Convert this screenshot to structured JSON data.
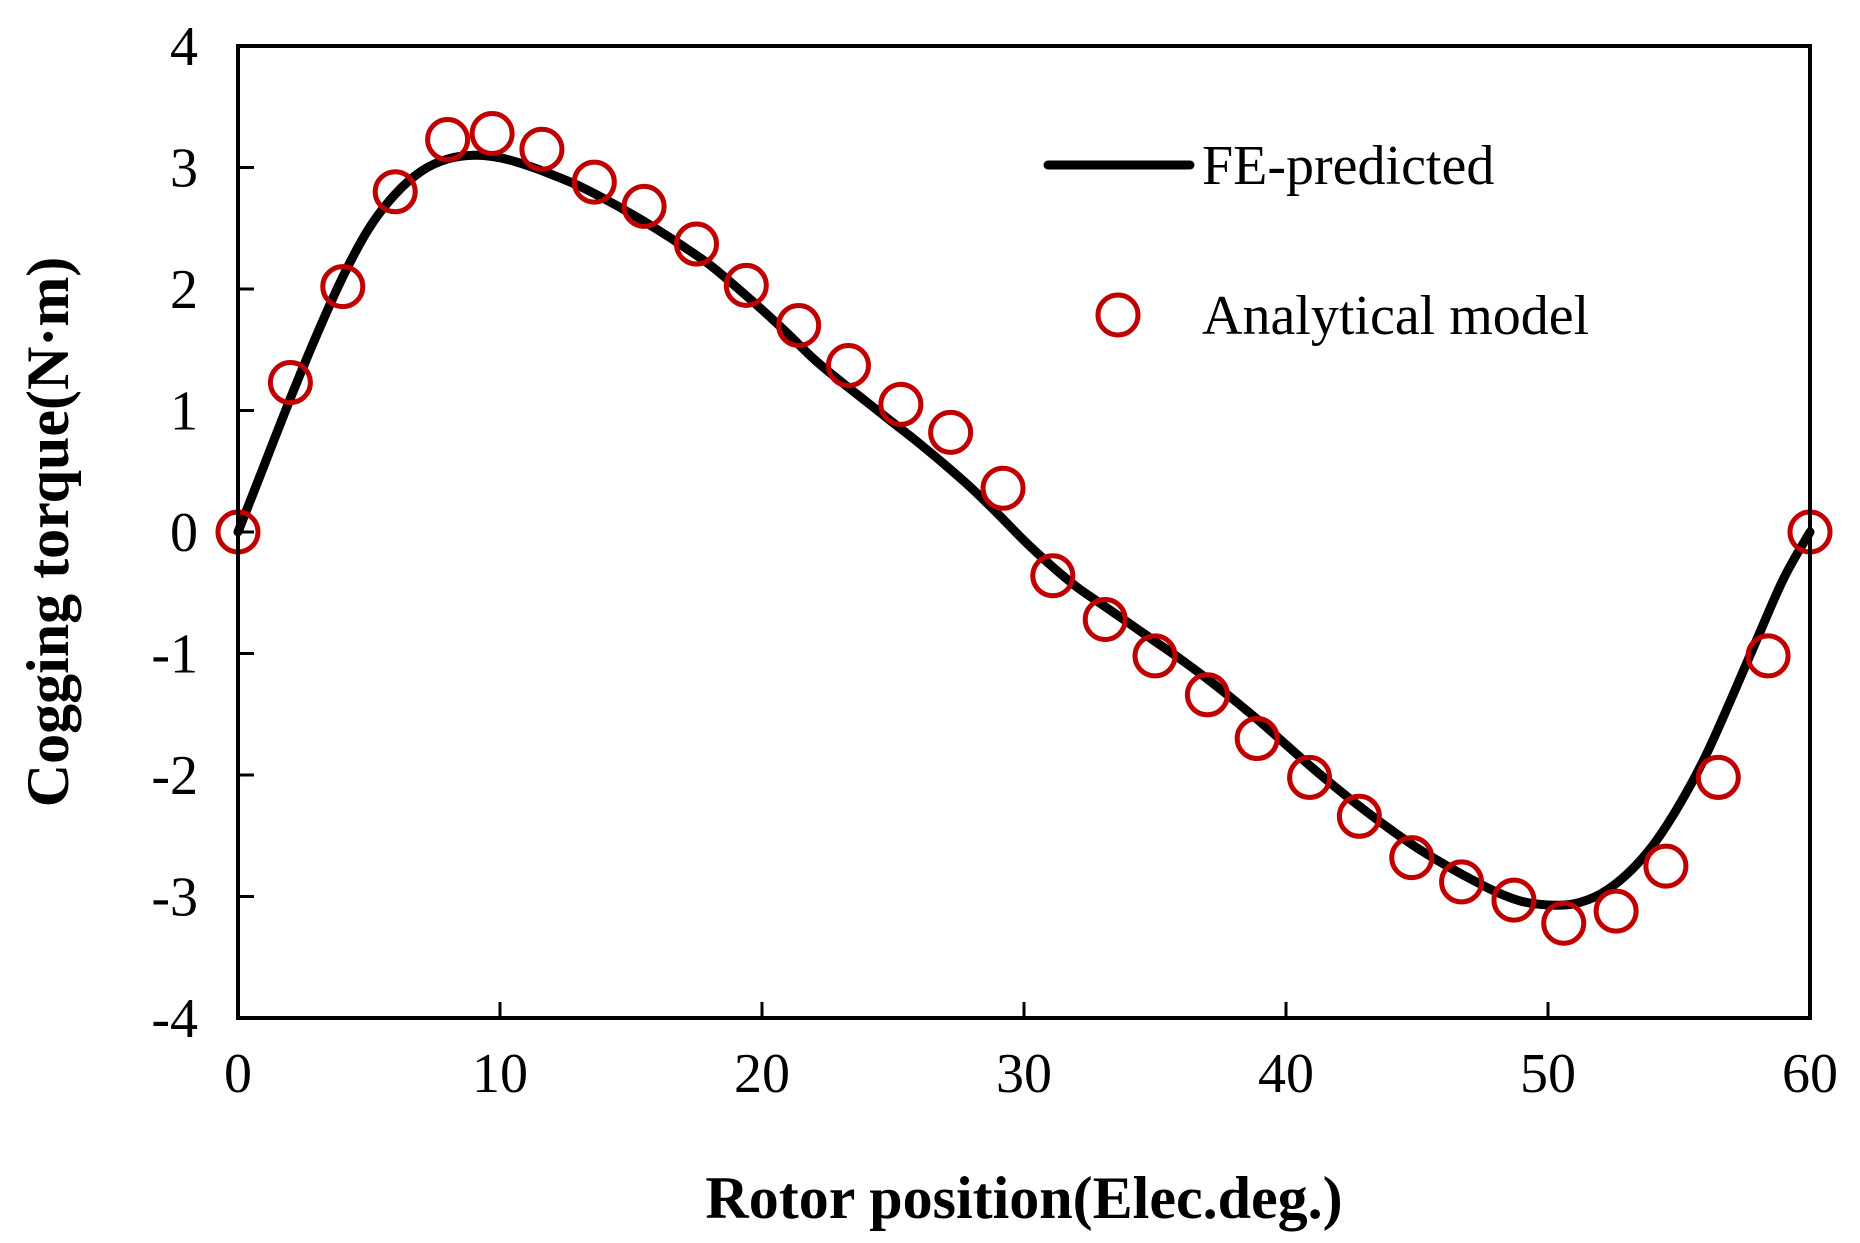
{
  "chart_data": {
    "type": "line",
    "title": "",
    "xlabel": "Rotor position(Elec.deg.)",
    "ylabel": "Cogging torque(N·m)",
    "xlim": [
      0,
      60
    ],
    "ylim": [
      -4,
      4
    ],
    "xticks": [
      0,
      10,
      20,
      30,
      40,
      50,
      60
    ],
    "yticks": [
      4,
      3,
      2,
      1,
      0,
      -1,
      -2,
      -3,
      -4
    ],
    "grid": false,
    "legend_position": "top-right",
    "colors": {
      "fe_line": "#000000",
      "analytical_marker": "#c00000"
    },
    "series": [
      {
        "name": "FE-predicted",
        "style": "line",
        "x": [
          0,
          1,
          2,
          3,
          4,
          5,
          6,
          7,
          8,
          9,
          10,
          11,
          12,
          13,
          14,
          15,
          16,
          17,
          18,
          19,
          20,
          21,
          22,
          23,
          24,
          25,
          26,
          27,
          28,
          29,
          30,
          31,
          32,
          33,
          34,
          35,
          36,
          37,
          38,
          39,
          40,
          41,
          42,
          43,
          44,
          45,
          46,
          47,
          48,
          49,
          50,
          51,
          52,
          53,
          54,
          55,
          56,
          57,
          58,
          59,
          60
        ],
        "y": [
          0,
          0.55,
          1.1,
          1.62,
          2.1,
          2.5,
          2.78,
          2.97,
          3.07,
          3.1,
          3.08,
          3.02,
          2.94,
          2.85,
          2.74,
          2.62,
          2.49,
          2.35,
          2.2,
          2.02,
          1.83,
          1.63,
          1.42,
          1.24,
          1.07,
          0.9,
          0.73,
          0.55,
          0.36,
          0.15,
          -0.07,
          -0.27,
          -0.45,
          -0.6,
          -0.75,
          -0.9,
          -1.05,
          -1.21,
          -1.38,
          -1.56,
          -1.75,
          -1.94,
          -2.12,
          -2.29,
          -2.45,
          -2.6,
          -2.73,
          -2.85,
          -2.96,
          -3.04,
          -3.07,
          -3.06,
          -2.98,
          -2.82,
          -2.58,
          -2.25,
          -1.85,
          -1.37,
          -0.87,
          -0.38,
          0
        ]
      },
      {
        "name": "Analytical model",
        "style": "marker",
        "x": [
          0,
          2,
          4,
          6,
          8,
          9.7,
          11.6,
          13.6,
          15.5,
          17.5,
          19.4,
          21.4,
          23.3,
          25.3,
          27.2,
          29.2,
          31.1,
          33.1,
          35,
          37,
          38.9,
          40.9,
          42.8,
          44.8,
          46.7,
          48.7,
          50.6,
          52.6,
          54.5,
          56.5,
          58.4,
          60
        ],
        "y": [
          0,
          1.23,
          2.02,
          2.8,
          3.23,
          3.28,
          3.15,
          2.88,
          2.68,
          2.37,
          2.03,
          1.7,
          1.37,
          1.05,
          0.82,
          0.36,
          -0.36,
          -0.72,
          -1.02,
          -1.34,
          -1.7,
          -2.02,
          -2.34,
          -2.68,
          -2.88,
          -3.03,
          -3.22,
          -3.12,
          -2.75,
          -2.02,
          -1.02,
          0
        ]
      }
    ]
  }
}
